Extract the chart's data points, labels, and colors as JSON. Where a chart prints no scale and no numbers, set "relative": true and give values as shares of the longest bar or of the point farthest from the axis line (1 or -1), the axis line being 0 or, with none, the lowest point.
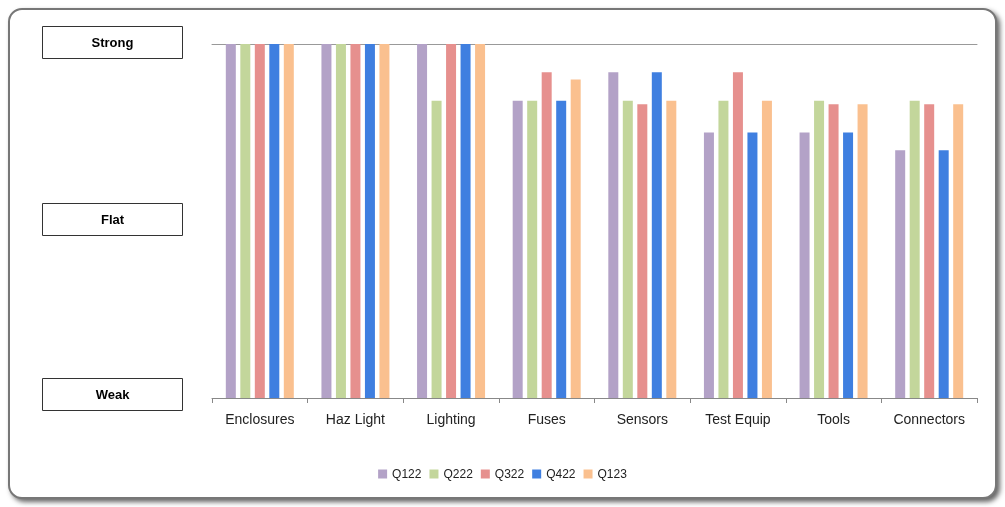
{
  "chart_data": {
    "type": "bar",
    "categories": [
      "Enclosures",
      "Haz Light",
      "Lighting",
      "Fuses",
      "Sensors",
      "Test Equip",
      "Tools",
      "Connectors"
    ],
    "relative": true,
    "annotations": [
      "Strong",
      "Flat",
      "Weak"
    ],
    "legend": "bottom",
    "series": [
      {
        "name": "Q122",
        "color": "#b3a2c7",
        "values": [
          1,
          1,
          1,
          0.84,
          0.92,
          0.75,
          0.75,
          0.7
        ]
      },
      {
        "name": "Q222",
        "color": "#c3d69b",
        "values": [
          1,
          1,
          0.84,
          0.84,
          0.84,
          0.84,
          0.84,
          0.84
        ]
      },
      {
        "name": "Q322",
        "color": "#e6908e",
        "values": [
          1,
          1,
          1,
          0.92,
          0.83,
          0.92,
          0.83,
          0.83
        ]
      },
      {
        "name": "Q422",
        "color": "#3f7fe0",
        "values": [
          1,
          1,
          1,
          0.84,
          0.92,
          0.75,
          0.75,
          0.7
        ]
      },
      {
        "name": "Q123",
        "color": "#fac08f",
        "values": [
          1,
          1,
          1,
          0.9,
          0.84,
          0.84,
          0.83,
          0.83
        ]
      }
    ]
  }
}
